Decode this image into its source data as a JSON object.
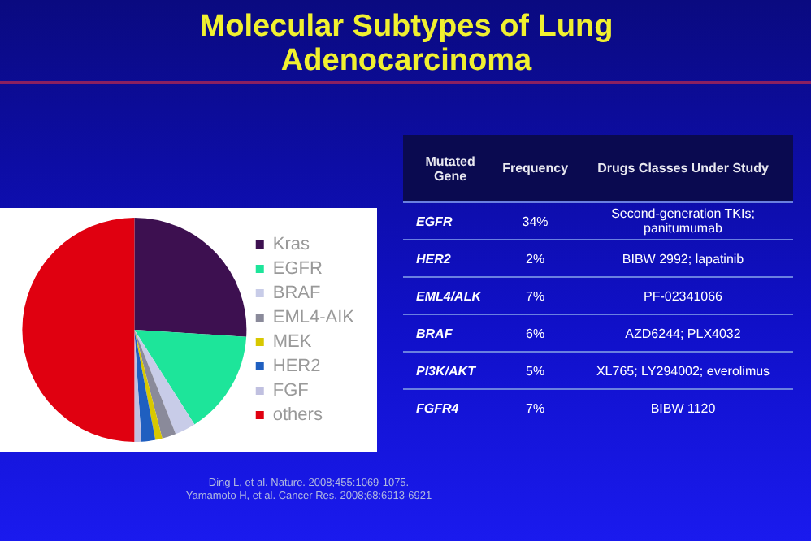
{
  "chart_data": [
    {
      "type": "pie",
      "title": "Molecular Subtypes of Lung Adenocarcinoma",
      "categories": [
        "Kras",
        "EGFR",
        "BRAF",
        "EML4-AIK",
        "MEK",
        "HER2",
        "FGF",
        "others"
      ],
      "values": [
        26,
        15,
        3,
        2,
        1,
        2,
        1,
        50
      ],
      "colors": [
        "#3d1050",
        "#1de59a",
        "#c8cce8",
        "#8a8a9a",
        "#d8c800",
        "#1f5fc0",
        "#c0c0e0",
        "#e00010"
      ],
      "legend": "right",
      "annotations": [
        "Ding L, et al. Nature. 2008;455:1069-1075.",
        "Yamamoto H, et al. Cancer Res. 2008;68:6913-6921"
      ]
    },
    {
      "type": "other",
      "categories": [
        "Mutated Gene",
        "Frequency",
        "Drugs Classes Under Study"
      ],
      "annotations": [
        "EGFR",
        "34%",
        "Second-generation TKIs; panitumumab",
        "HER2",
        "2%",
        "BIBW 2992; lapatinib",
        "EML4/ALK",
        "7%",
        "PF-02341066",
        "BRAF",
        "6%",
        "AZD6244; PLX4032",
        "PI3K/AKT",
        "5%",
        "XL765; LY294002; everolimus",
        "FGFR4",
        "7%",
        "BIBW 1120"
      ]
    }
  ]
}
